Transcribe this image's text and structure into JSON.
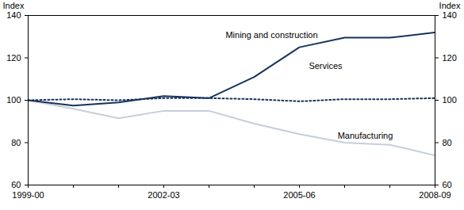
{
  "chart_data": {
    "type": "line",
    "y_label": "Index",
    "y2_label": "Index",
    "categories": [
      "1999-00",
      null,
      null,
      "2002-03",
      null,
      null,
      "2005-06",
      null,
      null,
      "2008-09"
    ],
    "series": [
      {
        "name": "Mining and construction",
        "color": "#17335c",
        "line_style": "solid",
        "values": [
          100,
          97.5,
          99,
          102,
          101,
          111,
          125,
          129.5,
          129.5,
          132
        ]
      },
      {
        "name": "Services",
        "color": "#17335c",
        "line_style": "dotted",
        "values": [
          100,
          100.5,
          100,
          101,
          101,
          100.5,
          99.5,
          100.5,
          100.5,
          101
        ]
      },
      {
        "name": "Manufacturing",
        "color": "#c5cedb",
        "line_style": "solid",
        "values": [
          100,
          96,
          91.5,
          95,
          95,
          89,
          84,
          80,
          79,
          74
        ]
      }
    ],
    "ylim": [
      60,
      140
    ],
    "yticks": [
      60,
      80,
      100,
      120,
      140
    ],
    "y2lim": [
      60,
      140
    ],
    "y2ticks": [
      60,
      80,
      100,
      120,
      140
    ],
    "grid": false
  }
}
